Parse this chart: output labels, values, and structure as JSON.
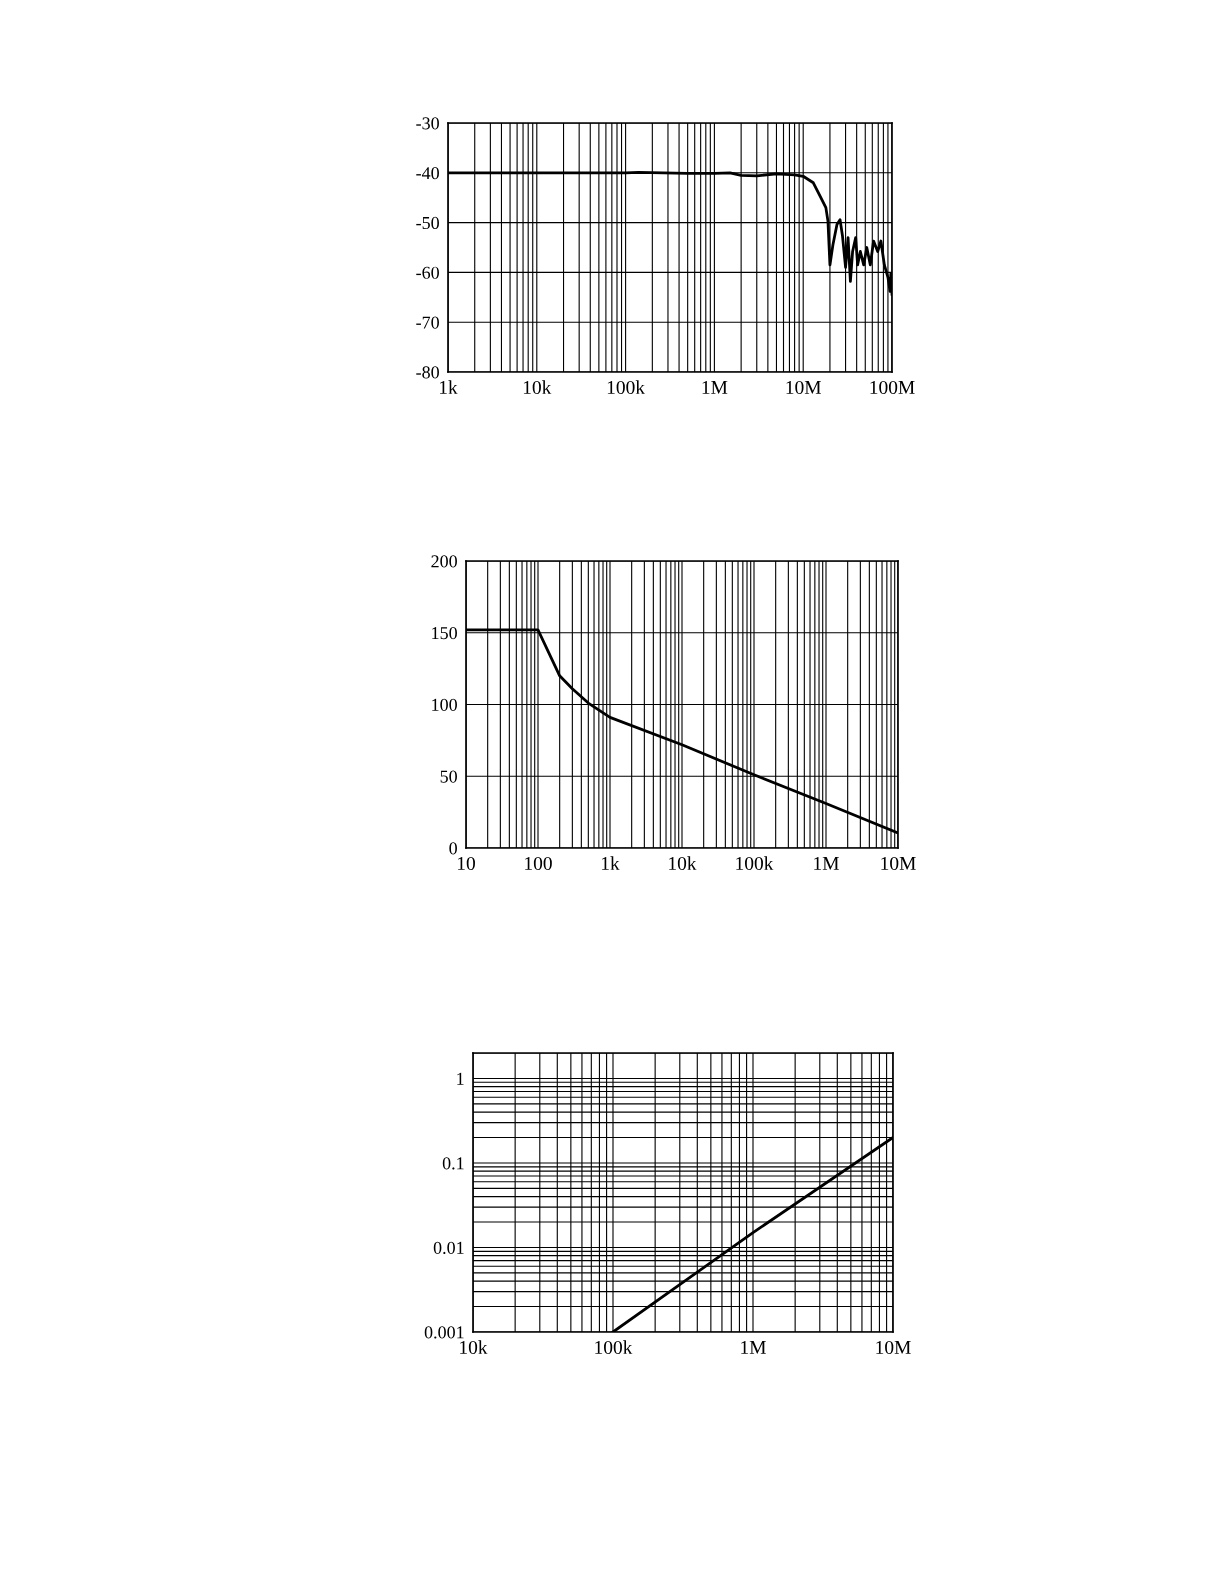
{
  "chart_data": [
    {
      "type": "line",
      "log": "x",
      "grid": true,
      "xlim": [
        1000,
        100000000
      ],
      "ylim": [
        -80,
        -30
      ],
      "xticks": [
        {
          "value": 1000,
          "label": "1k"
        },
        {
          "value": 10000,
          "label": "10k"
        },
        {
          "value": 100000,
          "label": "100k"
        },
        {
          "value": 1000000,
          "label": "1M"
        },
        {
          "value": 10000000,
          "label": "10M"
        },
        {
          "value": 100000000,
          "label": "100M"
        }
      ],
      "yticks": [
        -80,
        -70,
        -60,
        -50,
        -40,
        -30
      ],
      "series": [
        {
          "color": "#000000",
          "x": [
            1000,
            10000,
            100000,
            140000,
            500000,
            1000000,
            1500000,
            2000000,
            3000000,
            5000000,
            8000000,
            10000000,
            13000000,
            15600000,
            18000000,
            19000000,
            20000000,
            21600000,
            24000000,
            26000000,
            27700000,
            30000000,
            32000000,
            34000000,
            36000000,
            39000000,
            41000000,
            44000000,
            48000000,
            52000000,
            57000000,
            62000000,
            69000000,
            75000000,
            82000000,
            90000000,
            95000000,
            97000000,
            100000000
          ],
          "values": [
            -40,
            -40,
            -40,
            -39.9,
            -40.1,
            -40.1,
            -40,
            -40.5,
            -40.6,
            -40.2,
            -40.4,
            -40.7,
            -42,
            -44.8,
            -47,
            -49.7,
            -58.5,
            -54.5,
            -50.4,
            -49.4,
            -52.7,
            -59,
            -53,
            -61.8,
            -55.8,
            -53,
            -58.5,
            -55.8,
            -58.5,
            -55,
            -58.5,
            -53.7,
            -55.8,
            -53.7,
            -58.5,
            -61,
            -63.8,
            -60.3,
            -64.4
          ]
        }
      ]
    },
    {
      "type": "line",
      "log": "x",
      "grid": true,
      "xlim": [
        10,
        10000000
      ],
      "ylim": [
        0,
        200
      ],
      "xticks": [
        10,
        100,
        {
          "value": 1000,
          "label": "1k"
        },
        {
          "value": 10000,
          "label": "10k"
        },
        {
          "value": 100000,
          "label": "100k"
        },
        {
          "value": 1000000,
          "label": "1M"
        },
        {
          "value": 10000000,
          "label": "10M"
        }
      ],
      "yticks": [
        0,
        50,
        100,
        150,
        200
      ],
      "series": [
        {
          "color": "#000000",
          "x": [
            10,
            100,
            200,
            300,
            500,
            1000,
            10000,
            100000,
            1000000,
            10000000
          ],
          "values": [
            152,
            152,
            120,
            111,
            101,
            91,
            72,
            51,
            31,
            10.5
          ]
        }
      ]
    },
    {
      "type": "line",
      "log": "xy",
      "grid": true,
      "xlim": [
        10000,
        10000000
      ],
      "ylim": [
        0.001,
        2
      ],
      "xticks": [
        {
          "value": 10000,
          "label": "10k"
        },
        {
          "value": 100000,
          "label": "100k"
        },
        {
          "value": 1000000,
          "label": "1M"
        },
        {
          "value": 10000000,
          "label": "10M"
        }
      ],
      "yticks": [
        0.001,
        0.01,
        0.1,
        1
      ],
      "series": [
        {
          "color": "#000000",
          "x": [
            100000,
            1000000,
            10000000
          ],
          "values": [
            0.001,
            0.015,
            0.2
          ]
        }
      ]
    }
  ]
}
